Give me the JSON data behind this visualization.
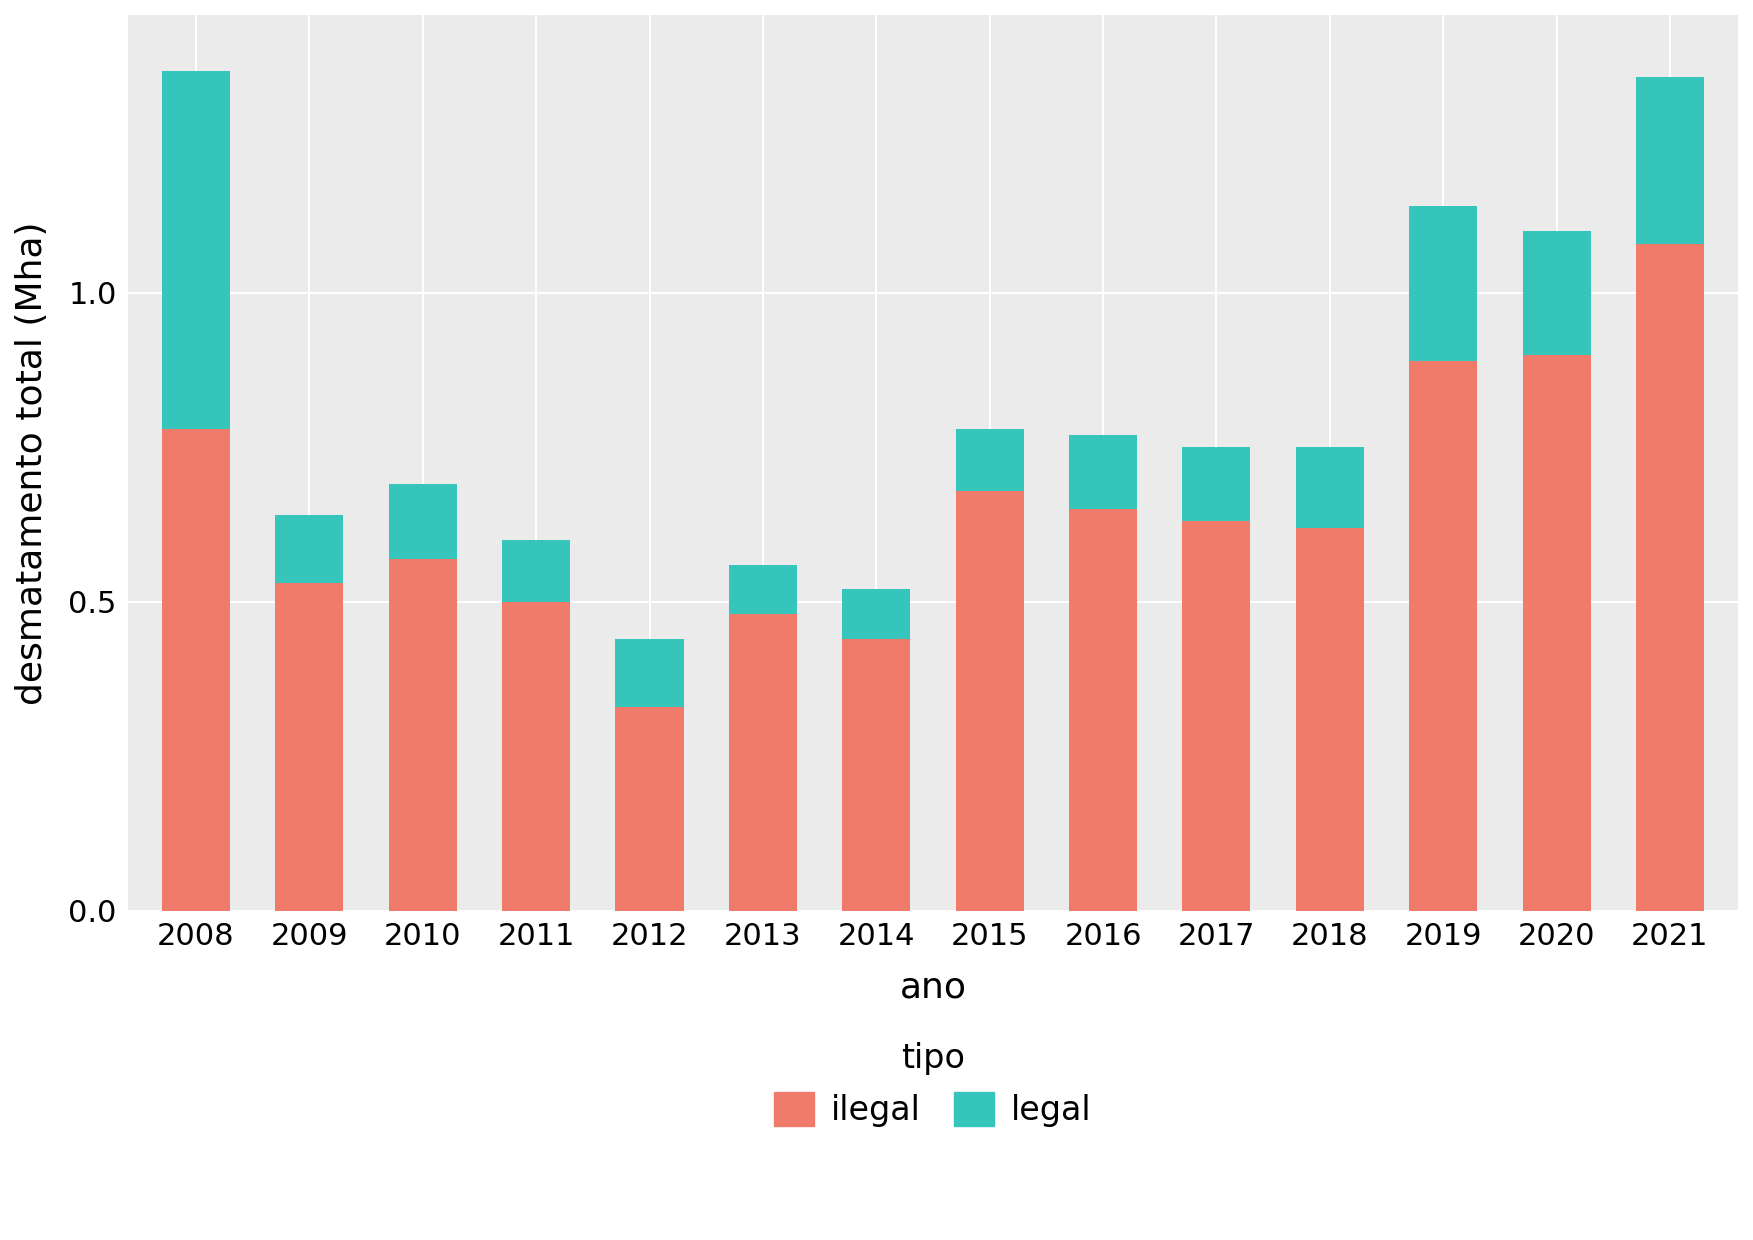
{
  "years": [
    2008,
    2009,
    2010,
    2011,
    2012,
    2013,
    2014,
    2015,
    2016,
    2017,
    2018,
    2019,
    2020,
    2021
  ],
  "ilegal": [
    0.78,
    0.53,
    0.57,
    0.5,
    0.33,
    0.48,
    0.44,
    0.68,
    0.65,
    0.63,
    0.62,
    0.89,
    0.9,
    1.08
  ],
  "legal": [
    0.58,
    0.11,
    0.12,
    0.1,
    0.11,
    0.08,
    0.08,
    0.1,
    0.12,
    0.12,
    0.13,
    0.25,
    0.2,
    0.27
  ],
  "color_ilegal": "#F07B6B",
  "color_legal": "#36C5BB",
  "xlabel": "ano",
  "ylabel": "desmatamento total (Mha)",
  "legend_title": "tipo",
  "legend_labels": [
    "ilegal",
    "legal"
  ],
  "bg_color": "#EBEBEB",
  "grid_color": "#FFFFFF",
  "ylim": [
    0,
    1.45
  ],
  "yticks": [
    0.0,
    0.5,
    1.0
  ],
  "bar_width": 0.6
}
